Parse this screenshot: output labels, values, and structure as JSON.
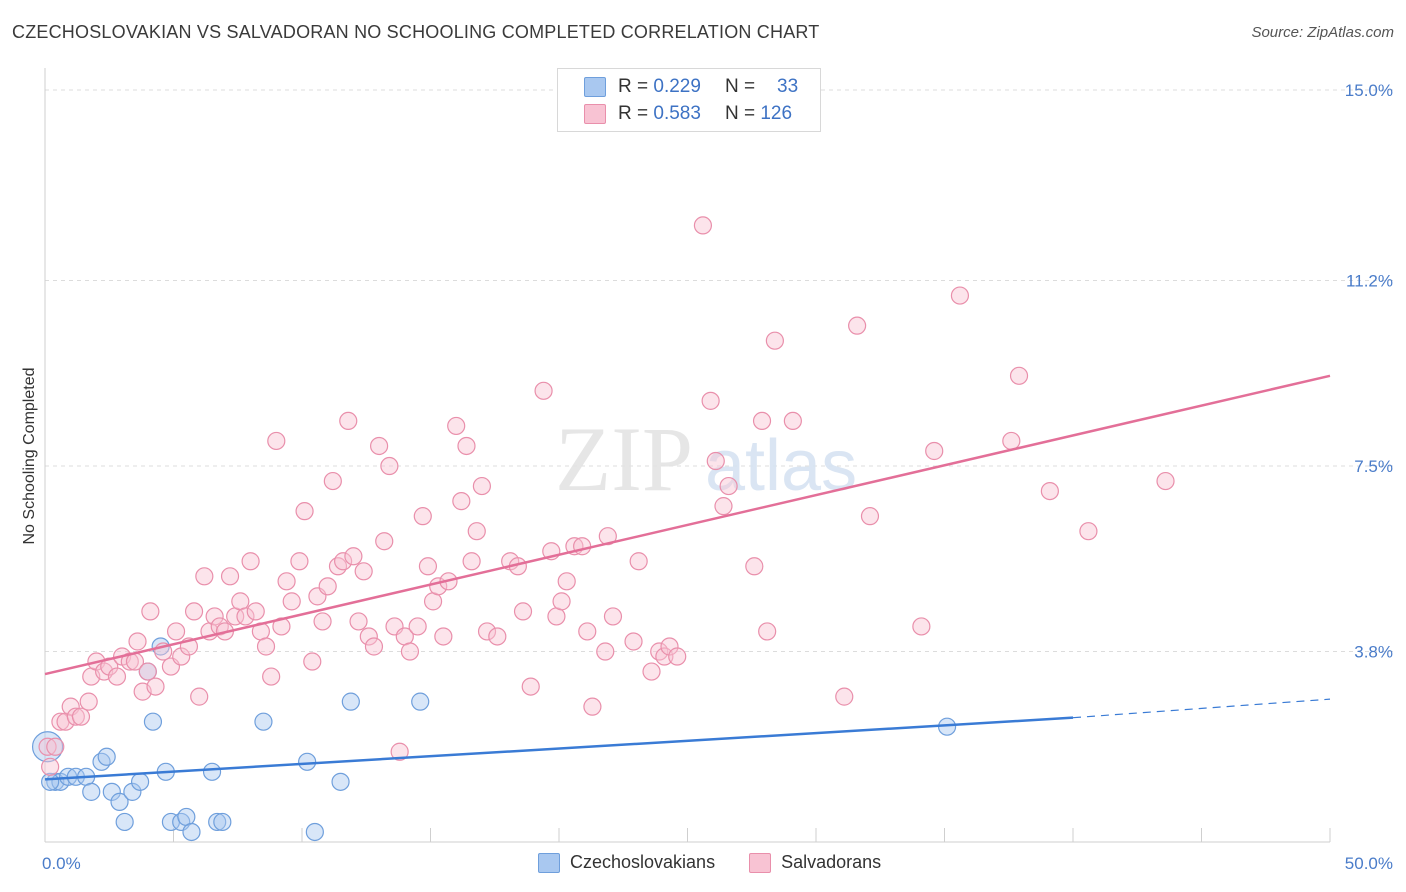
{
  "header": {
    "title": "CZECHOSLOVAKIAN VS SALVADORAN NO SCHOOLING COMPLETED CORRELATION CHART",
    "source": "Source: ZipAtlas.com"
  },
  "watermark": {
    "zip": "ZIP",
    "atlas": "atlas"
  },
  "legend_top": {
    "rows": [
      {
        "r_label": "R =",
        "r_value": "0.229",
        "n_label": "N =",
        "n_value": "33",
        "color": "#a9c8f0",
        "border": "#6f9fdc"
      },
      {
        "r_label": "R =",
        "r_value": "0.583",
        "n_label": "N =",
        "n_value": "126",
        "color": "#f8c3d3",
        "border": "#e98fab"
      }
    ]
  },
  "chart_data": {
    "type": "scatter",
    "title": "CZECHOSLOVAKIAN VS SALVADORAN NO SCHOOLING COMPLETED CORRELATION CHART",
    "xlabel": "",
    "ylabel": "No Schooling Completed",
    "xlim": [
      0,
      50
    ],
    "ylim": [
      0,
      15.4
    ],
    "x_tick_labels": [
      {
        "value": 0,
        "label": "0.0%"
      },
      {
        "value": 50,
        "label": "50.0%"
      }
    ],
    "y_tick_labels": [
      {
        "value": 3.8,
        "label": "3.8%"
      },
      {
        "value": 7.5,
        "label": "7.5%"
      },
      {
        "value": 11.2,
        "label": "11.2%"
      },
      {
        "value": 15.0,
        "label": "15.0%"
      }
    ],
    "x_minor_ticks": [
      5,
      10,
      15,
      20,
      25,
      30,
      35,
      40,
      45
    ],
    "series": [
      {
        "name": "Czechoslovakians",
        "color": "#a9c8f0",
        "stroke": "#6f9fdc",
        "trend": {
          "x0": 0,
          "y0": 1.25,
          "x1": 40,
          "y1": 2.48,
          "dash_to": 50,
          "dash_y": 2.85,
          "color": "#3a7bd5"
        },
        "points": [
          [
            0.1,
            1.9
          ],
          [
            0.4,
            1.2
          ],
          [
            0.6,
            1.2
          ],
          [
            0.9,
            1.3
          ],
          [
            1.2,
            1.3
          ],
          [
            1.6,
            1.3
          ],
          [
            1.8,
            1.0
          ],
          [
            2.2,
            1.6
          ],
          [
            2.4,
            1.7
          ],
          [
            2.6,
            1.0
          ],
          [
            2.9,
            0.8
          ],
          [
            3.1,
            0.4
          ],
          [
            3.4,
            1.0
          ],
          [
            3.7,
            1.2
          ],
          [
            4.0,
            3.4
          ],
          [
            4.2,
            2.4
          ],
          [
            4.5,
            3.9
          ],
          [
            4.7,
            1.4
          ],
          [
            4.9,
            0.4
          ],
          [
            5.3,
            0.4
          ],
          [
            5.5,
            0.5
          ],
          [
            5.7,
            0.2
          ],
          [
            6.5,
            1.4
          ],
          [
            6.7,
            0.4
          ],
          [
            6.9,
            0.4
          ],
          [
            8.5,
            2.4
          ],
          [
            10.2,
            1.6
          ],
          [
            10.5,
            0.2
          ],
          [
            11.5,
            1.2
          ],
          [
            11.9,
            2.8
          ],
          [
            14.6,
            2.8
          ],
          [
            35.1,
            2.3
          ],
          [
            0.2,
            1.2
          ]
        ]
      },
      {
        "name": "Salvadorans",
        "color": "#f8c3d3",
        "stroke": "#e98fab",
        "trend": {
          "x0": 0,
          "y0": 3.35,
          "x1": 50,
          "y1": 9.3,
          "color": "#e36f98"
        },
        "points": [
          [
            0.1,
            1.9
          ],
          [
            0.2,
            1.5
          ],
          [
            0.4,
            1.9
          ],
          [
            0.6,
            2.4
          ],
          [
            0.8,
            2.4
          ],
          [
            1.0,
            2.7
          ],
          [
            1.2,
            2.5
          ],
          [
            1.4,
            2.5
          ],
          [
            1.7,
            2.8
          ],
          [
            1.8,
            3.3
          ],
          [
            2.0,
            3.6
          ],
          [
            2.3,
            3.4
          ],
          [
            2.5,
            3.5
          ],
          [
            2.8,
            3.3
          ],
          [
            3.0,
            3.7
          ],
          [
            3.3,
            3.6
          ],
          [
            3.5,
            3.6
          ],
          [
            3.6,
            4.0
          ],
          [
            3.8,
            3.0
          ],
          [
            4.0,
            3.4
          ],
          [
            4.1,
            4.6
          ],
          [
            4.3,
            3.1
          ],
          [
            4.6,
            3.8
          ],
          [
            4.9,
            3.5
          ],
          [
            5.1,
            4.2
          ],
          [
            5.3,
            3.7
          ],
          [
            5.6,
            3.9
          ],
          [
            5.8,
            4.6
          ],
          [
            6.0,
            2.9
          ],
          [
            6.2,
            5.3
          ],
          [
            6.4,
            4.2
          ],
          [
            6.6,
            4.5
          ],
          [
            6.8,
            4.3
          ],
          [
            7.0,
            4.2
          ],
          [
            7.2,
            5.3
          ],
          [
            7.4,
            4.5
          ],
          [
            7.6,
            4.8
          ],
          [
            7.8,
            4.5
          ],
          [
            8.0,
            5.6
          ],
          [
            8.2,
            4.6
          ],
          [
            8.4,
            4.2
          ],
          [
            8.6,
            3.9
          ],
          [
            8.8,
            3.3
          ],
          [
            9.0,
            8.0
          ],
          [
            9.2,
            4.3
          ],
          [
            9.4,
            5.2
          ],
          [
            9.6,
            4.8
          ],
          [
            9.9,
            5.6
          ],
          [
            10.1,
            6.6
          ],
          [
            10.4,
            3.6
          ],
          [
            10.6,
            4.9
          ],
          [
            10.8,
            4.4
          ],
          [
            11.0,
            5.1
          ],
          [
            11.2,
            7.2
          ],
          [
            11.4,
            5.5
          ],
          [
            11.6,
            5.6
          ],
          [
            11.8,
            8.4
          ],
          [
            12.0,
            5.7
          ],
          [
            12.2,
            4.4
          ],
          [
            12.4,
            5.4
          ],
          [
            12.6,
            4.1
          ],
          [
            12.8,
            3.9
          ],
          [
            13.0,
            7.9
          ],
          [
            13.2,
            6.0
          ],
          [
            13.4,
            7.5
          ],
          [
            13.6,
            4.3
          ],
          [
            13.8,
            1.8
          ],
          [
            14.0,
            4.1
          ],
          [
            14.2,
            3.8
          ],
          [
            14.5,
            4.3
          ],
          [
            14.7,
            6.5
          ],
          [
            14.9,
            5.5
          ],
          [
            15.1,
            4.8
          ],
          [
            15.3,
            5.1
          ],
          [
            15.5,
            4.1
          ],
          [
            15.7,
            5.2
          ],
          [
            16.0,
            8.3
          ],
          [
            16.2,
            6.8
          ],
          [
            16.4,
            7.9
          ],
          [
            16.6,
            5.6
          ],
          [
            16.8,
            6.2
          ],
          [
            17.0,
            7.1
          ],
          [
            17.2,
            4.2
          ],
          [
            17.6,
            4.1
          ],
          [
            18.1,
            5.6
          ],
          [
            18.4,
            5.5
          ],
          [
            18.6,
            4.6
          ],
          [
            18.9,
            3.1
          ],
          [
            19.4,
            9.0
          ],
          [
            19.7,
            5.8
          ],
          [
            19.9,
            4.5
          ],
          [
            20.1,
            4.8
          ],
          [
            20.3,
            5.2
          ],
          [
            20.6,
            5.9
          ],
          [
            20.9,
            5.9
          ],
          [
            21.1,
            4.2
          ],
          [
            21.3,
            2.7
          ],
          [
            21.8,
            3.8
          ],
          [
            21.9,
            6.1
          ],
          [
            22.1,
            4.5
          ],
          [
            22.9,
            4.0
          ],
          [
            23.1,
            5.6
          ],
          [
            23.6,
            3.4
          ],
          [
            23.9,
            3.8
          ],
          [
            24.1,
            3.7
          ],
          [
            24.3,
            3.9
          ],
          [
            24.6,
            3.7
          ],
          [
            25.6,
            12.3
          ],
          [
            25.9,
            8.8
          ],
          [
            26.1,
            7.6
          ],
          [
            26.4,
            6.7
          ],
          [
            26.6,
            7.1
          ],
          [
            27.6,
            5.5
          ],
          [
            27.9,
            8.4
          ],
          [
            28.1,
            4.2
          ],
          [
            28.4,
            10.0
          ],
          [
            29.1,
            8.4
          ],
          [
            31.1,
            2.9
          ],
          [
            31.6,
            10.3
          ],
          [
            32.1,
            6.5
          ],
          [
            34.1,
            4.3
          ],
          [
            34.6,
            7.8
          ],
          [
            35.6,
            10.9
          ],
          [
            37.6,
            8.0
          ],
          [
            37.9,
            9.3
          ],
          [
            39.1,
            7.0
          ],
          [
            40.6,
            6.2
          ],
          [
            43.6,
            7.2
          ]
        ]
      }
    ],
    "legend": [
      "Czechoslovakians",
      "Salvadorans"
    ],
    "grid": true
  }
}
